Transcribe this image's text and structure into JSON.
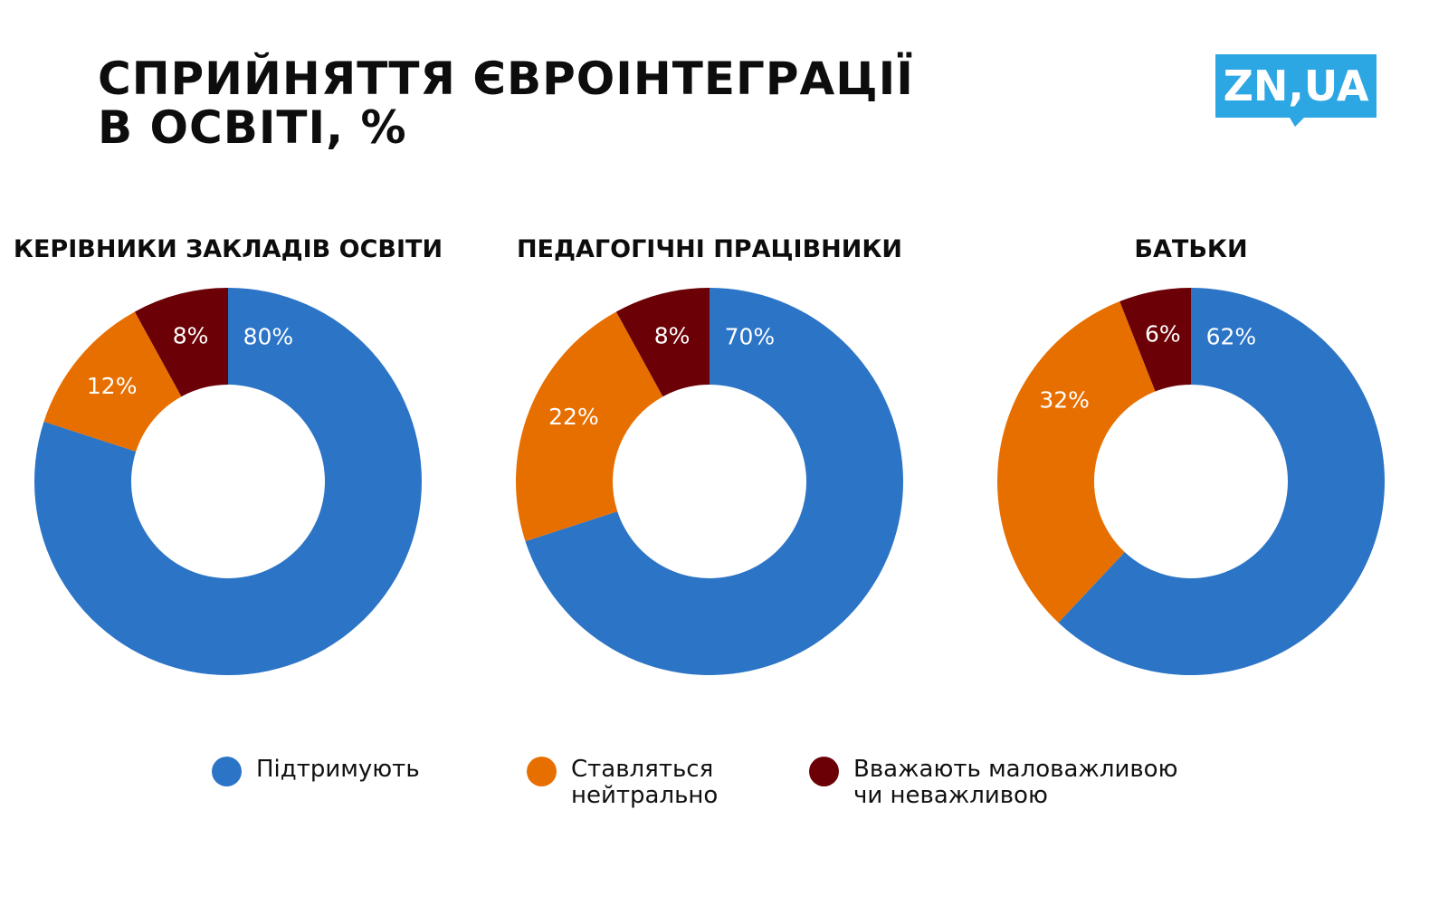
{
  "header": {
    "title_line1": "СПРИЙНЯТТЯ ЄВРОІНТЕГРАЦІЇ",
    "title_line2": "В ОСВІТІ, %",
    "logo_text": "ZN,UA",
    "logo_color": "#2da7e3"
  },
  "colors": {
    "support": "#2b74c6",
    "neutral": "#e76f00",
    "unimportant": "#6b0006"
  },
  "legend": [
    {
      "label": "Підтримують",
      "color": "#2b74c6"
    },
    {
      "label": "Ставляться\nнейтрально",
      "color": "#e76f00"
    },
    {
      "label": "Вважають маловажливою\nчи неважливою",
      "color": "#6b0006"
    }
  ],
  "chart_data": [
    {
      "type": "pie",
      "title": "КЕРІВНИКИ ЗАКЛАДІВ ОСВІТИ",
      "categories": [
        "Підтримують",
        "Ставляться нейтрально",
        "Вважають маловажливою чи неважливою"
      ],
      "values": [
        80,
        12,
        8
      ],
      "labels": [
        "80%",
        "12%",
        "8%"
      ],
      "colors": [
        "#2b74c6",
        "#e76f00",
        "#6b0006"
      ],
      "donut": true
    },
    {
      "type": "pie",
      "title": "ПЕДАГОГІЧНІ ПРАЦІВНИКИ",
      "categories": [
        "Підтримують",
        "Ставляться нейтрально",
        "Вважають маловажливою чи неважливою"
      ],
      "values": [
        70,
        22,
        8
      ],
      "labels": [
        "70%",
        "22%",
        "8%"
      ],
      "colors": [
        "#2b74c6",
        "#e76f00",
        "#6b0006"
      ],
      "donut": true
    },
    {
      "type": "pie",
      "title": "БАТЬКИ",
      "categories": [
        "Підтримують",
        "Ставляться нейтрально",
        "Вважають маловажливою чи неважливою"
      ],
      "values": [
        62,
        32,
        6
      ],
      "labels": [
        "62%",
        "32%",
        "6%"
      ],
      "colors": [
        "#2b74c6",
        "#e76f00",
        "#6b0006"
      ],
      "donut": true
    }
  ]
}
